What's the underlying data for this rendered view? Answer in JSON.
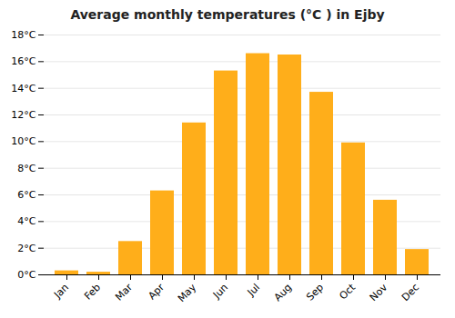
{
  "chart_data": {
    "type": "bar",
    "title": "Average monthly temperatures (°C ) in Ejby",
    "categories": [
      "Jan",
      "Feb",
      "Mar",
      "Apr",
      "May",
      "Jun",
      "Jul",
      "Aug",
      "Sep",
      "Oct",
      "Nov",
      "Dec"
    ],
    "values": [
      0.3,
      0.2,
      2.5,
      6.3,
      11.4,
      15.3,
      16.6,
      16.5,
      13.7,
      9.9,
      5.6,
      1.9
    ],
    "color": "#FFAE1A",
    "ylim": [
      0,
      18
    ],
    "yticks": [
      {
        "value": 0,
        "label": "0°C"
      },
      {
        "value": 2,
        "label": "2°C"
      },
      {
        "value": 4,
        "label": "4°C"
      },
      {
        "value": 6,
        "label": "6°C"
      },
      {
        "value": 8,
        "label": "8°C"
      },
      {
        "value": 10,
        "label": "10°C"
      },
      {
        "value": 12,
        "label": "12°C"
      },
      {
        "value": 14,
        "label": "14°C"
      },
      {
        "value": 16,
        "label": "16°C"
      },
      {
        "value": 18,
        "label": "18°C"
      }
    ],
    "grid": true
  }
}
